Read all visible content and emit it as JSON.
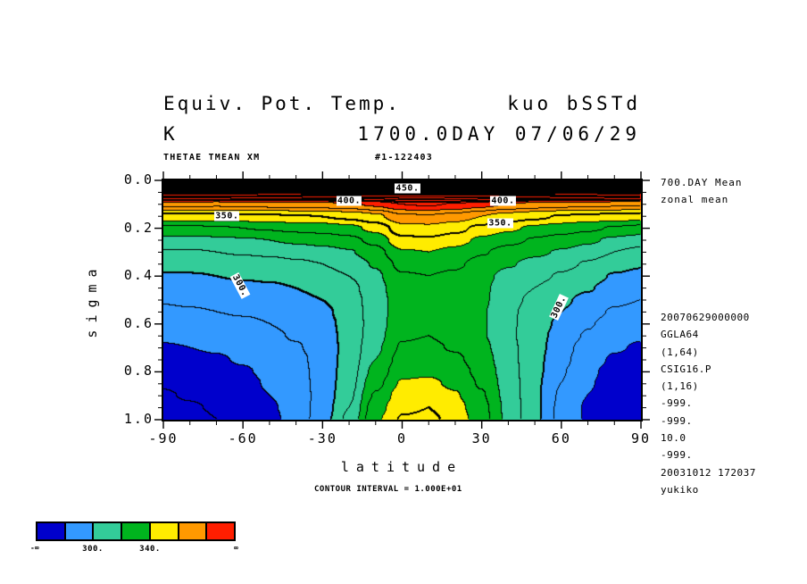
{
  "title": {
    "line1_left": "Equiv. Pot. Temp.",
    "line1_right": "kuo bSSTd",
    "line2_left": "K",
    "line2_right": "1700.0DAY 07/06/29"
  },
  "subheader": {
    "left": "THETAE TMEAN XM",
    "right": "#1-122403"
  },
  "right_panel": {
    "mean_lines": [
      "700.DAY Mean",
      "zonal mean"
    ],
    "info_lines": [
      "20070629000000",
      "GGLA64",
      "(1,64)",
      "CSIG16.P",
      "(1,16)",
      "-999.",
      "-999.",
      "10.0",
      "-999.",
      "20031012 172037",
      "yukiko"
    ]
  },
  "axes": {
    "x_label": "latitude",
    "y_label": "sigma",
    "x_tick_labels": [
      "-90",
      "-60",
      "-30",
      "0",
      "30",
      "60",
      "90"
    ],
    "x_tick_values": [
      -90,
      -60,
      -30,
      0,
      30,
      60,
      90
    ],
    "x_minor_step": 10,
    "y_tick_labels": [
      "0.0",
      "0.2",
      "0.4",
      "0.6",
      "0.8",
      "1.0"
    ],
    "y_tick_values": [
      0,
      0.2,
      0.4,
      0.6,
      0.8,
      1.0
    ],
    "y_minor_step": 0.05
  },
  "footer": {
    "contour_note": "CONTOUR INTERVAL = 1.000E+01"
  },
  "colorbar": {
    "colors": [
      "#0000cc",
      "#3399ff",
      "#33cc99",
      "#00b41e",
      "#ffec00",
      "#ff9900",
      "#ff1e00"
    ],
    "boundaries": [
      280,
      300,
      320,
      340,
      360,
      380
    ],
    "labels": [
      {
        "text": "300.",
        "boundary_index": 2
      },
      {
        "text": "340.",
        "boundary_index": 4
      }
    ],
    "left_end_label": "-∞",
    "right_end_label": "∞"
  },
  "chart_data": {
    "type": "heatmap",
    "title": "Equiv. Pot. Temp. (K), zonal mean, 700.DAY Mean, 1700.0DAY 07/06/29, kuo bSSTd",
    "units": "K",
    "xlabel": "latitude",
    "ylabel": "sigma",
    "contour_interval": 10,
    "thick_contour_every": 50,
    "fill_boundaries": [
      280,
      300,
      320,
      340,
      360,
      380
    ],
    "fill_colors": [
      "#0000cc",
      "#3399ff",
      "#33cc99",
      "#00b41e",
      "#ffec00",
      "#ff9900",
      "#ff1e00"
    ],
    "black_above": 445,
    "line_color": "#000000",
    "x_lats": [
      -90,
      -80,
      -70,
      -60,
      -50,
      -40,
      -30,
      -20,
      -10,
      0,
      10,
      20,
      30,
      40,
      50,
      60,
      70,
      80,
      90
    ],
    "y_sigmas": [
      0,
      0.05,
      0.1,
      0.15,
      0.2,
      0.25,
      0.3,
      0.35,
      0.4,
      0.45,
      0.5,
      0.55,
      0.6,
      0.65,
      0.7,
      0.75,
      0.8,
      0.85,
      0.9,
      0.95,
      1.0
    ],
    "values": [
      [
        560,
        560,
        560,
        560,
        560,
        560,
        560,
        560,
        560,
        560,
        560,
        560,
        560,
        560,
        560,
        560,
        560,
        560,
        560
      ],
      [
        446,
        446,
        447,
        447,
        448,
        448,
        449,
        449,
        450,
        450,
        450,
        450,
        450,
        449,
        449,
        448,
        448,
        447,
        446
      ],
      [
        373,
        373,
        372,
        373,
        374,
        375,
        376,
        378,
        382,
        390,
        391,
        389,
        384,
        379,
        376,
        374,
        373,
        372,
        372
      ],
      [
        346,
        346,
        346,
        347,
        348,
        349,
        350,
        352,
        357,
        368,
        369,
        366,
        360,
        355,
        352,
        349,
        347,
        346,
        345
      ],
      [
        328,
        328,
        329,
        330,
        331,
        333,
        334,
        337,
        343,
        356,
        357,
        353,
        347,
        342,
        338,
        335,
        332,
        329,
        327
      ],
      [
        317,
        317,
        318,
        319,
        320,
        322,
        324,
        327,
        333,
        347,
        348,
        344,
        338,
        333,
        329,
        326,
        322,
        318,
        315
      ],
      [
        309,
        309,
        310,
        311,
        312,
        314,
        316,
        319,
        326,
        339,
        340,
        337,
        331,
        326,
        322,
        319,
        315,
        310,
        307
      ],
      [
        303,
        304,
        304,
        305,
        306,
        308,
        310,
        314,
        321,
        333,
        334,
        332,
        326,
        321,
        317,
        313,
        309,
        304,
        301
      ],
      [
        299,
        299,
        300,
        301,
        302,
        304,
        306,
        310,
        318,
        329,
        330,
        328,
        323,
        317,
        313,
        309,
        305,
        299,
        297
      ],
      [
        295,
        295,
        296,
        297,
        298,
        300,
        303,
        307,
        316,
        327,
        328,
        326,
        322,
        315,
        310,
        305,
        301,
        295,
        293
      ],
      [
        291,
        292,
        293,
        294,
        295,
        297,
        300,
        305,
        315,
        326,
        327,
        325,
        322,
        313,
        308,
        302,
        297,
        292,
        290
      ],
      [
        288,
        289,
        290,
        291,
        292,
        295,
        298,
        304,
        315,
        326,
        327,
        325,
        321,
        312,
        306,
        300,
        294,
        289,
        287
      ],
      [
        285,
        286,
        287,
        288,
        290,
        293,
        297,
        303,
        315,
        327,
        328,
        326,
        321,
        312,
        305,
        298,
        291,
        286,
        284
      ],
      [
        282,
        283,
        284,
        285,
        288,
        291,
        296,
        303,
        316,
        329,
        330,
        327,
        321,
        312,
        304,
        296,
        289,
        283,
        281
      ],
      [
        279,
        280,
        281,
        283,
        286,
        289,
        295,
        303,
        318,
        331,
        332,
        329,
        323,
        313,
        304,
        294,
        286,
        281,
        279
      ],
      [
        277,
        278,
        279,
        281,
        284,
        287,
        294,
        304,
        320,
        334,
        335,
        332,
        325,
        314,
        303,
        293,
        284,
        279,
        277
      ],
      [
        274,
        275,
        277,
        279,
        282,
        286,
        294,
        305,
        323,
        337,
        338,
        335,
        327,
        315,
        303,
        291,
        282,
        277,
        275
      ],
      [
        271,
        273,
        275,
        277,
        281,
        285,
        294,
        306,
        327,
        341,
        342,
        338,
        329,
        316,
        302,
        290,
        281,
        276,
        274
      ],
      [
        269,
        271,
        273,
        276,
        280,
        284,
        294,
        308,
        331,
        345,
        346,
        341,
        331,
        317,
        302,
        289,
        280,
        275,
        273
      ],
      [
        267,
        269,
        271,
        275,
        279,
        283,
        295,
        310,
        335,
        348,
        350,
        344,
        333,
        318,
        302,
        288,
        279,
        274,
        272
      ],
      [
        265,
        267,
        270,
        274,
        278,
        283,
        296,
        312,
        338,
        351,
        352,
        347,
        334,
        318,
        302,
        288,
        279,
        274,
        272
      ]
    ],
    "contour_labels": [
      {
        "text": "450.",
        "lat": 2,
        "sigma": 0.035,
        "rotate": 0
      },
      {
        "text": "400.",
        "lat": -20,
        "sigma": 0.085,
        "rotate": 0
      },
      {
        "text": "400.",
        "lat": 38,
        "sigma": 0.085,
        "rotate": 0
      },
      {
        "text": "350.",
        "lat": -66,
        "sigma": 0.148,
        "rotate": 0
      },
      {
        "text": "350.",
        "lat": 37,
        "sigma": 0.178,
        "rotate": 0
      },
      {
        "text": "300.",
        "lat": -61,
        "sigma": 0.44,
        "rotate": 62
      },
      {
        "text": "300.",
        "lat": 59,
        "sigma": 0.53,
        "rotate": -65
      }
    ]
  }
}
